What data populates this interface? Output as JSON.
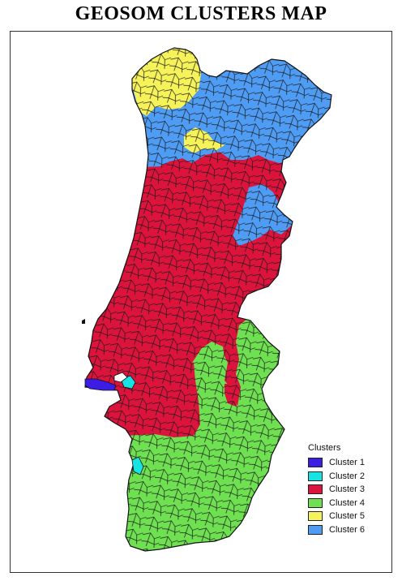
{
  "title": "GEOSOM CLUSTERS MAP",
  "legend": {
    "title": "Clusters",
    "items": [
      {
        "label": "Cluster 1",
        "color": "#3b1de6"
      },
      {
        "label": "Cluster 2",
        "color": "#18e3e3"
      },
      {
        "label": "Cluster 3",
        "color": "#dc143c"
      },
      {
        "label": "Cluster 4",
        "color": "#6ee051"
      },
      {
        "label": "Cluster 5",
        "color": "#f5f25a"
      },
      {
        "label": "Cluster 6",
        "color": "#4f9cf4"
      }
    ]
  },
  "colors": {
    "border": "#1a1a1a",
    "background": "#ffffff"
  }
}
